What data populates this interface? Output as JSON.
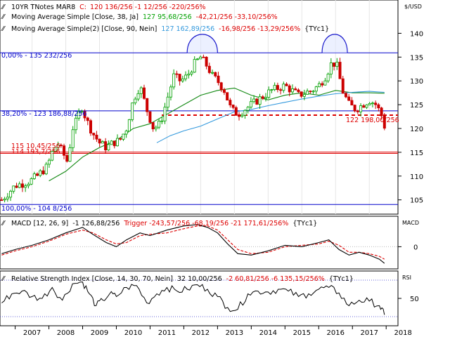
{
  "header": {
    "symbol": "10YR TNotes MAR8",
    "close_prefix": "C:",
    "close_values": "120 136/256 -1 12/256 -220/256%"
  },
  "units_label": "$/USD",
  "ma1": {
    "label": "Moving Average Simple [Close, 38, Ja]",
    "value": "127 95,68/256",
    "change": "-42,21/256 -33,10/256%",
    "value_color": "#00a000"
  },
  "ma2": {
    "label": "Moving Average Simple(2) [Close, 90, Nein]",
    "value": "127 162,89/256",
    "change": "-16,98/256 -13,29/256%",
    "tag": "{TYc1}",
    "value_color": "#3399dd"
  },
  "fib_labels": {
    "l0": "0,00% - 135 232/256",
    "l382": "38,20% - 123 186,88/256",
    "l100": "100,00% - 104 8/256",
    "red1": "115 10,45/256",
    "red2": "114 193,7/256",
    "last": "122 198,00/256"
  },
  "macd_header": {
    "label": "MACD [12, 26, 9]",
    "value": "-1 126,88/256",
    "trigger": "Trigger -243,57/256 -68,19/256 -21 171,61/256%",
    "tag": "{TYc1}"
  },
  "macd_axis_label": "MACD",
  "rsi_header": {
    "label": "Relative Strength Index [Close, 14, 30, 70, Nein]",
    "value": "32 10,00/256",
    "change": "-2 60,81/256 -6 135,15/256%",
    "tag": "{TYc1}"
  },
  "rsi_axis_label": "RSI",
  "colors": {
    "up": "#00a000",
    "down": "#cc0000",
    "ma1": "#118811",
    "ma2": "#3399dd",
    "fib": "#0000cc",
    "red": "#dd0000",
    "macd": "#000000",
    "trigger": "#dd0000"
  },
  "chart_data": [
    {
      "type": "candlestick",
      "title": "10YR TNotes MAR8",
      "ylabel": "$/USD",
      "ylim": [
        102,
        147
      ],
      "yticks": [
        105,
        110,
        115,
        120,
        125,
        130,
        135,
        140
      ],
      "x_ticks": [
        "2007",
        "2008",
        "2009",
        "2010",
        "2011",
        "2012",
        "2013",
        "2014",
        "2015",
        "2016",
        "2017",
        "2018"
      ],
      "xlim": [
        2006.55,
        2018.35
      ],
      "price_x": [
        2006.6,
        2006.8,
        2007.0,
        2007.25,
        2007.45,
        2007.65,
        2007.8,
        2007.95,
        2008.1,
        2008.25,
        2008.4,
        2008.55,
        2008.7,
        2008.85,
        2008.95,
        2009.1,
        2009.3,
        2009.5,
        2009.7,
        2009.9,
        2010.1,
        2010.3,
        2010.5,
        2010.7,
        2010.9,
        2011.1,
        2011.3,
        2011.5,
        2011.7,
        2011.9,
        2012.1,
        2012.3,
        2012.5,
        2012.7,
        2012.85,
        2013.0,
        2013.2,
        2013.4,
        2013.6,
        2013.8,
        2014.0,
        2014.2,
        2014.4,
        2014.6,
        2014.8,
        2015.0,
        2015.2,
        2015.4,
        2015.6,
        2015.8,
        2016.0,
        2016.2,
        2016.4,
        2016.55,
        2016.7,
        2016.9,
        2017.1,
        2017.3,
        2017.5,
        2017.7,
        2017.85,
        2017.95
      ],
      "price": [
        105,
        106.5,
        108,
        108.5,
        109,
        110,
        111,
        112,
        115,
        117,
        115,
        113,
        120,
        122,
        125,
        122,
        119,
        117,
        116,
        117,
        117.5,
        120,
        126,
        129,
        124,
        120,
        121,
        126,
        131,
        130,
        131,
        133.5,
        135,
        133,
        131,
        130,
        128,
        124,
        123,
        124,
        125,
        126,
        127,
        128,
        128.5,
        129,
        128,
        127,
        127.5,
        128,
        129,
        131,
        134,
        133,
        128,
        125,
        124,
        125,
        126,
        125,
        123,
        120.5
      ],
      "ma1_x": [
        2008.0,
        2008.5,
        2009.0,
        2009.5,
        2010.0,
        2010.5,
        2011.0,
        2011.5,
        2012.0,
        2012.5,
        2013.0,
        2013.5,
        2014.0,
        2014.5,
        2015.0,
        2015.5,
        2016.0,
        2016.5,
        2017.0,
        2017.5,
        2017.95
      ],
      "ma1": [
        109,
        111,
        114,
        116,
        117.5,
        120,
        121,
        123,
        125,
        127,
        128,
        128.5,
        127,
        126,
        127,
        127.5,
        127,
        128,
        127.5,
        127.5,
        127.4
      ],
      "ma2_x": [
        2011.2,
        2011.6,
        2012.0,
        2012.5,
        2013.0,
        2013.5,
        2014.0,
        2014.5,
        2015.0,
        2015.5,
        2016.0,
        2016.5,
        2017.0,
        2017.5,
        2017.95
      ],
      "ma2": [
        117,
        118.5,
        119.5,
        120.5,
        122,
        123.5,
        124,
        124.8,
        125.5,
        126.2,
        126.8,
        127.3,
        127.6,
        127.8,
        127.6
      ],
      "levels": [
        {
          "name": "0,00%",
          "value": 135.9
        },
        {
          "name": "38,20%",
          "value": 123.7
        },
        {
          "name": "100,00%",
          "value": 104.03
        },
        {
          "name": "115 10,45/256",
          "value": 115.04
        },
        {
          "name": "114 193,7/256",
          "value": 114.76
        },
        {
          "name": "122 198,00/256",
          "value": 122.8
        }
      ]
    },
    {
      "type": "line",
      "title": "MACD [12, 26, 9]",
      "ylabel": "MACD",
      "ylim": [
        -1.6,
        2.2
      ],
      "yticks": [
        0
      ],
      "series": [
        {
          "name": "MACD",
          "x": [
            2006.6,
            2007.0,
            2007.5,
            2008.0,
            2008.5,
            2009.0,
            2009.3,
            2009.7,
            2010.0,
            2010.3,
            2010.7,
            2011.0,
            2011.5,
            2012.0,
            2012.4,
            2012.7,
            2013.0,
            2013.3,
            2013.6,
            2014.0,
            2014.5,
            2015.0,
            2015.5,
            2016.0,
            2016.3,
            2016.6,
            2016.9,
            2017.2,
            2017.5,
            2017.8,
            2017.95
          ],
          "values": [
            -0.5,
            -0.2,
            0.1,
            0.5,
            1.0,
            1.4,
            0.9,
            0.3,
            0.0,
            0.5,
            1.0,
            0.8,
            1.2,
            1.5,
            1.6,
            1.4,
            1.0,
            0.2,
            -0.5,
            -0.6,
            -0.3,
            0.1,
            0.0,
            0.3,
            0.5,
            -0.2,
            -0.6,
            -0.4,
            -0.6,
            -0.9,
            -1.2
          ]
        },
        {
          "name": "Trigger",
          "x": [
            2006.6,
            2007.0,
            2007.5,
            2008.0,
            2008.5,
            2009.0,
            2009.3,
            2009.7,
            2010.0,
            2010.3,
            2010.7,
            2011.0,
            2011.5,
            2012.0,
            2012.4,
            2012.7,
            2013.0,
            2013.3,
            2013.6,
            2014.0,
            2014.5,
            2015.0,
            2015.5,
            2016.0,
            2016.3,
            2016.6,
            2016.9,
            2017.2,
            2017.5,
            2017.8,
            2017.95
          ],
          "values": [
            -0.6,
            -0.3,
            0.0,
            0.4,
            0.9,
            1.2,
            1.0,
            0.5,
            0.2,
            0.3,
            0.8,
            0.9,
            1.0,
            1.3,
            1.5,
            1.5,
            1.2,
            0.5,
            -0.2,
            -0.5,
            -0.4,
            0.0,
            0.1,
            0.2,
            0.4,
            0.1,
            -0.4,
            -0.4,
            -0.5,
            -0.7,
            -0.9
          ]
        }
      ]
    },
    {
      "type": "line",
      "title": "Relative Strength Index [Close, 14, 30, 70, Nein]",
      "ylabel": "RSI",
      "ylim": [
        20,
        80
      ],
      "yticks": [
        50
      ],
      "levels": [
        70,
        30
      ],
      "series": [
        {
          "name": "RSI",
          "x": [
            2006.6,
            2006.9,
            2007.2,
            2007.5,
            2007.8,
            2008.1,
            2008.4,
            2008.7,
            2009.0,
            2009.2,
            2009.4,
            2009.6,
            2009.8,
            2010.0,
            2010.3,
            2010.6,
            2010.9,
            2011.2,
            2011.5,
            2011.8,
            2012.1,
            2012.4,
            2012.7,
            2013.0,
            2013.3,
            2013.6,
            2013.9,
            2014.2,
            2014.5,
            2014.8,
            2015.1,
            2015.4,
            2015.7,
            2016.0,
            2016.3,
            2016.6,
            2016.9,
            2017.2,
            2017.5,
            2017.8,
            2017.95
          ],
          "values": [
            45,
            55,
            58,
            52,
            50,
            62,
            48,
            66,
            68,
            55,
            42,
            48,
            55,
            52,
            62,
            64,
            45,
            55,
            62,
            58,
            60,
            65,
            60,
            52,
            40,
            38,
            55,
            58,
            57,
            60,
            58,
            52,
            55,
            60,
            62,
            56,
            42,
            48,
            47,
            42,
            32
          ]
        }
      ]
    }
  ]
}
